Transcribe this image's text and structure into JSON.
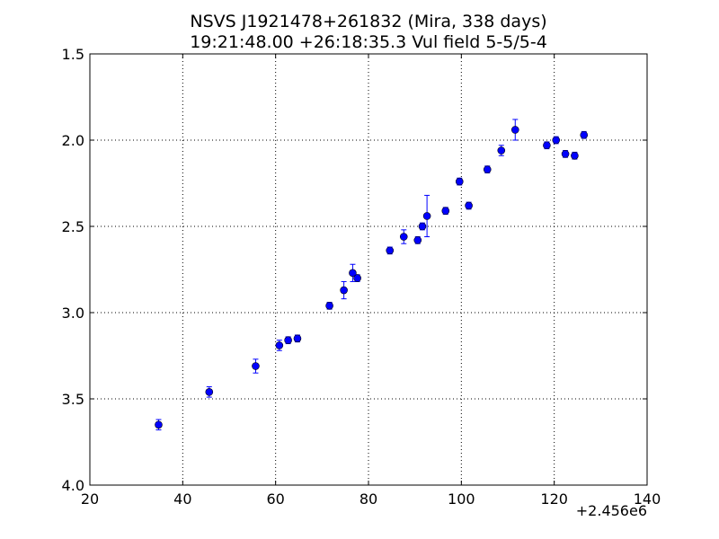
{
  "chart_data": {
    "type": "scatter",
    "title": "NSVS J1921478+261832 (Mira, 338 days)",
    "subtitle": "19:21:48.00 +26:18:35.3 Vul field 5-5/5-4",
    "xlabel": "",
    "ylabel": "",
    "x_offset_label": "+2.456e6",
    "xlim": [
      20,
      140
    ],
    "ylim": [
      1.5,
      4.0
    ],
    "y_inverted": true,
    "grid": true,
    "x_ticks": [
      20,
      40,
      60,
      80,
      100,
      120,
      140
    ],
    "x_tick_labels": [
      "20",
      "40",
      "60",
      "80",
      "100",
      "120",
      "140"
    ],
    "y_ticks": [
      1.5,
      2.0,
      2.5,
      3.0,
      3.5,
      4.0
    ],
    "y_tick_labels": [
      "1.5",
      "2.0",
      "2.5",
      "3.0",
      "3.5",
      "4.0"
    ],
    "marker_color": "#0000ff",
    "errorbar_color": "#0000ff",
    "points": [
      {
        "x": 34.8,
        "y": 3.65,
        "err": 0.03
      },
      {
        "x": 45.7,
        "y": 3.46,
        "err": 0.03
      },
      {
        "x": 55.7,
        "y": 3.31,
        "err": 0.04
      },
      {
        "x": 60.8,
        "y": 3.19,
        "err": 0.03
      },
      {
        "x": 62.7,
        "y": 3.16,
        "err": 0.02
      },
      {
        "x": 64.7,
        "y": 3.15,
        "err": 0.02
      },
      {
        "x": 71.6,
        "y": 2.96,
        "err": 0.02
      },
      {
        "x": 74.7,
        "y": 2.87,
        "err": 0.05
      },
      {
        "x": 76.6,
        "y": 2.77,
        "err": 0.05
      },
      {
        "x": 77.6,
        "y": 2.8,
        "err": 0.02
      },
      {
        "x": 84.6,
        "y": 2.64,
        "err": 0.02
      },
      {
        "x": 87.6,
        "y": 2.56,
        "err": 0.04
      },
      {
        "x": 90.6,
        "y": 2.58,
        "err": 0.02
      },
      {
        "x": 91.6,
        "y": 2.5,
        "err": 0.02
      },
      {
        "x": 92.6,
        "y": 2.44,
        "err": 0.12
      },
      {
        "x": 96.6,
        "y": 2.41,
        "err": 0.02
      },
      {
        "x": 99.6,
        "y": 2.24,
        "err": 0.02
      },
      {
        "x": 101.6,
        "y": 2.38,
        "err": 0.02
      },
      {
        "x": 105.6,
        "y": 2.17,
        "err": 0.02
      },
      {
        "x": 108.6,
        "y": 2.06,
        "err": 0.03
      },
      {
        "x": 111.6,
        "y": 1.94,
        "err": 0.06
      },
      {
        "x": 118.4,
        "y": 2.03,
        "err": 0.02
      },
      {
        "x": 120.4,
        "y": 2.0,
        "err": 0.02
      },
      {
        "x": 122.4,
        "y": 2.08,
        "err": 0.02
      },
      {
        "x": 124.4,
        "y": 2.09,
        "err": 0.02
      },
      {
        "x": 126.4,
        "y": 1.97,
        "err": 0.02
      }
    ]
  }
}
